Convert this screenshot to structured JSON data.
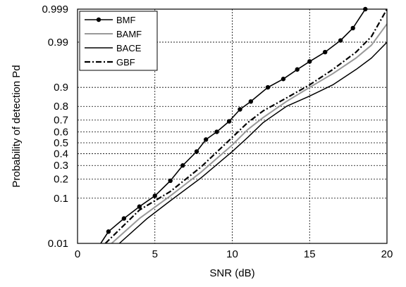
{
  "chart_data": {
    "type": "line",
    "title": "",
    "xlabel": "SNR (dB)",
    "ylabel": "Probability of detection Pd",
    "xlim": [
      0,
      20
    ],
    "ylim": [
      0.01,
      0.999
    ],
    "y_scale": "normal-probability",
    "x_ticks": [
      0,
      5,
      10,
      15,
      20
    ],
    "x_tick_labels": [
      "0",
      "5",
      "10",
      "15",
      "20"
    ],
    "y_ticks": [
      0.01,
      0.1,
      0.2,
      0.3,
      0.4,
      0.5,
      0.6,
      0.7,
      0.8,
      0.9,
      0.99,
      0.999
    ],
    "y_tick_labels": [
      "0.01",
      "0.1",
      "0.2",
      "0.3",
      "0.4",
      "0.5",
      "0.6",
      "0.7",
      "0.8",
      "0.9",
      "0.99",
      "0.999"
    ],
    "grid": true,
    "legend_position": "top-left",
    "series": [
      {
        "name": "BMF",
        "style": "solid-dot-markers",
        "color": "#000000",
        "x": [
          1.5,
          2.0,
          3.0,
          4.0,
          5.0,
          6.0,
          6.8,
          7.7,
          8.3,
          9.0,
          9.8,
          10.5,
          11.2,
          12.3,
          13.3,
          14.2,
          15.0,
          16.0,
          17.0,
          17.8,
          18.6
        ],
        "y": [
          0.01,
          0.02,
          0.04,
          0.07,
          0.11,
          0.19,
          0.3,
          0.42,
          0.53,
          0.6,
          0.69,
          0.78,
          0.83,
          0.9,
          0.93,
          0.955,
          0.97,
          0.982,
          0.991,
          0.996,
          0.999
        ]
      },
      {
        "name": "BAMF",
        "style": "solid-gray",
        "color": "#999999",
        "x": [
          2.2,
          4.0,
          6.0,
          8.0,
          10.0,
          11.0,
          12.0,
          13.5,
          15.0,
          16.5,
          18.0,
          19.0,
          20.0
        ],
        "y": [
          0.01,
          0.04,
          0.11,
          0.25,
          0.48,
          0.62,
          0.72,
          0.83,
          0.9,
          0.945,
          0.975,
          0.988,
          0.997
        ]
      },
      {
        "name": "BACE",
        "style": "solid-black",
        "color": "#000000",
        "x": [
          2.7,
          4.5,
          6.0,
          8.0,
          10.0,
          11.0,
          12.0,
          13.5,
          15.0,
          16.5,
          18.0,
          19.0,
          20.0
        ],
        "y": [
          0.01,
          0.04,
          0.09,
          0.21,
          0.42,
          0.55,
          0.68,
          0.8,
          0.86,
          0.91,
          0.955,
          0.975,
          0.99
        ]
      },
      {
        "name": "GBF",
        "style": "dash-dot",
        "color": "#000000",
        "x": [
          1.8,
          4.0,
          6.0,
          8.0,
          10.0,
          11.0,
          12.0,
          13.5,
          15.0,
          16.5,
          18.0,
          19.0,
          20.0
        ],
        "y": [
          0.01,
          0.06,
          0.13,
          0.29,
          0.55,
          0.68,
          0.77,
          0.85,
          0.91,
          0.955,
          0.982,
          0.993,
          0.999
        ]
      }
    ]
  }
}
